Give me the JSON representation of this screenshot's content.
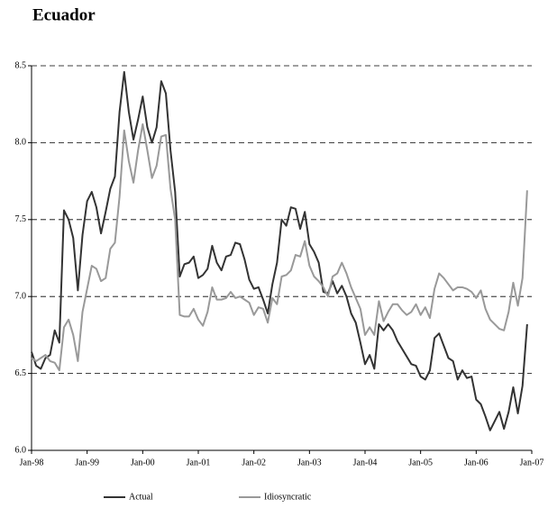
{
  "chart_data": {
    "type": "line",
    "title": "Ecuador",
    "categories": [
      "Jan-98",
      null,
      null,
      null,
      null,
      null,
      null,
      null,
      null,
      null,
      null,
      null,
      "Jan-99",
      null,
      null,
      null,
      null,
      null,
      null,
      null,
      null,
      null,
      null,
      null,
      "Jan-00",
      null,
      null,
      null,
      null,
      null,
      null,
      null,
      null,
      null,
      null,
      null,
      "Jan-01",
      null,
      null,
      null,
      null,
      null,
      null,
      null,
      null,
      null,
      null,
      null,
      "Jan-02",
      null,
      null,
      null,
      null,
      null,
      null,
      null,
      null,
      null,
      null,
      null,
      "Jan-03",
      null,
      null,
      null,
      null,
      null,
      null,
      null,
      null,
      null,
      null,
      null,
      "Jan-04",
      null,
      null,
      null,
      null,
      null,
      null,
      null,
      null,
      null,
      null,
      null,
      "Jan-05",
      null,
      null,
      null,
      null,
      null,
      null,
      null,
      null,
      null,
      null,
      null,
      "Jan-06",
      null,
      null,
      null,
      null,
      null,
      null,
      null,
      null,
      null,
      null,
      null,
      "Jan-07"
    ],
    "series": [
      {
        "name": "Actual",
        "color": "#333333",
        "values": [
          6.64,
          6.55,
          6.53,
          6.6,
          6.62,
          6.78,
          6.7,
          7.56,
          7.5,
          7.38,
          7.04,
          7.4,
          7.62,
          7.68,
          7.58,
          7.41,
          7.55,
          7.7,
          7.78,
          8.2,
          8.46,
          8.2,
          8.02,
          8.15,
          8.3,
          8.1,
          8.0,
          8.1,
          8.4,
          8.32,
          7.95,
          7.68,
          7.13,
          7.21,
          7.22,
          7.26,
          7.12,
          7.14,
          7.18,
          7.33,
          7.22,
          7.17,
          7.26,
          7.27,
          7.35,
          7.34,
          7.24,
          7.11,
          7.05,
          7.06,
          6.98,
          6.89,
          7.08,
          7.22,
          7.5,
          7.46,
          7.58,
          7.57,
          7.44,
          7.55,
          7.34,
          7.29,
          7.22,
          7.03,
          7.02,
          7.1,
          7.02,
          7.07,
          7.0,
          6.89,
          6.83,
          6.7,
          6.56,
          6.62,
          6.53,
          6.82,
          6.78,
          6.82,
          6.78,
          6.71,
          6.66,
          6.61,
          6.56,
          6.55,
          6.48,
          6.46,
          6.52,
          6.73,
          6.76,
          6.68,
          6.6,
          6.58,
          6.46,
          6.52,
          6.47,
          6.48,
          6.33,
          6.3,
          6.22,
          6.13,
          6.19,
          6.25,
          6.14,
          6.25,
          6.41,
          6.24,
          6.42,
          6.82,
          null
        ]
      },
      {
        "name": "Idiosyncratic",
        "color": "#999999",
        "values": [
          6.6,
          6.58,
          6.6,
          6.62,
          6.58,
          6.57,
          6.52,
          6.8,
          6.85,
          6.75,
          6.58,
          6.9,
          7.05,
          7.2,
          7.18,
          7.1,
          7.12,
          7.31,
          7.35,
          7.65,
          8.08,
          7.88,
          7.74,
          7.95,
          8.12,
          7.95,
          7.77,
          7.85,
          8.04,
          8.05,
          7.7,
          7.5,
          6.88,
          6.87,
          6.87,
          6.92,
          6.85,
          6.81,
          6.9,
          7.06,
          6.98,
          6.98,
          6.99,
          7.03,
          6.99,
          7.0,
          6.98,
          6.96,
          6.88,
          6.93,
          6.92,
          6.83,
          6.99,
          6.95,
          7.13,
          7.14,
          7.17,
          7.27,
          7.26,
          7.36,
          7.2,
          7.13,
          7.1,
          7.06,
          7.0,
          7.13,
          7.15,
          7.22,
          7.15,
          7.06,
          6.99,
          6.92,
          6.75,
          6.8,
          6.75,
          6.97,
          6.84,
          6.9,
          6.95,
          6.95,
          6.91,
          6.88,
          6.9,
          6.95,
          6.88,
          6.93,
          6.86,
          7.05,
          7.15,
          7.12,
          7.08,
          7.04,
          7.06,
          7.06,
          7.05,
          7.03,
          6.99,
          7.04,
          6.92,
          6.85,
          6.82,
          6.79,
          6.78,
          6.9,
          7.09,
          6.94,
          7.12,
          7.69,
          null
        ]
      }
    ],
    "ylim": [
      6.0,
      8.5
    ],
    "yticks": [
      {
        "value": 6.0,
        "label": "6.0"
      },
      6.5,
      {
        "value": 7.0,
        "label": "7.0"
      },
      7.5,
      {
        "value": 8.0,
        "label": "8.0"
      },
      8.5
    ],
    "grid": true,
    "legend": "bottom"
  }
}
